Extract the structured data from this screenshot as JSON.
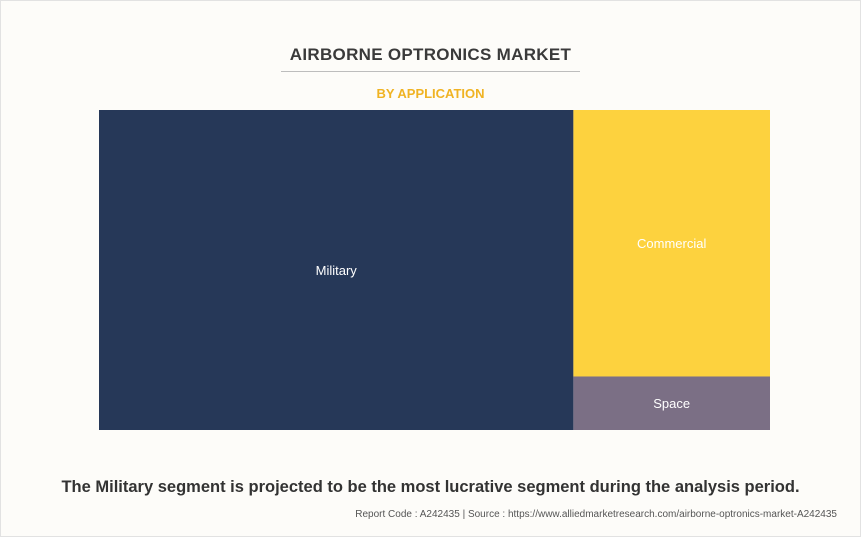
{
  "header": {
    "title": "AIRBORNE OPTRONICS MARKET",
    "subtitle": "BY APPLICATION"
  },
  "chart_data": {
    "type": "treemap",
    "title": "AIRBORNE OPTRONICS MARKET",
    "subtitle": "BY APPLICATION",
    "categories": [
      "Military",
      "Commercial",
      "Space"
    ],
    "values": [
      70.7,
      24.4,
      4.9
    ],
    "colors": [
      "#263858",
      "#fdd23e",
      "#7b6f85"
    ],
    "label_color": "#ffffff"
  },
  "footer": {
    "caption": "The Military segment is projected to be the most lucrative segment during the analysis period.",
    "source": "Report Code : A242435  |  Source : https://www.alliedmarketresearch.com/airborne-optronics-market-A242435"
  }
}
